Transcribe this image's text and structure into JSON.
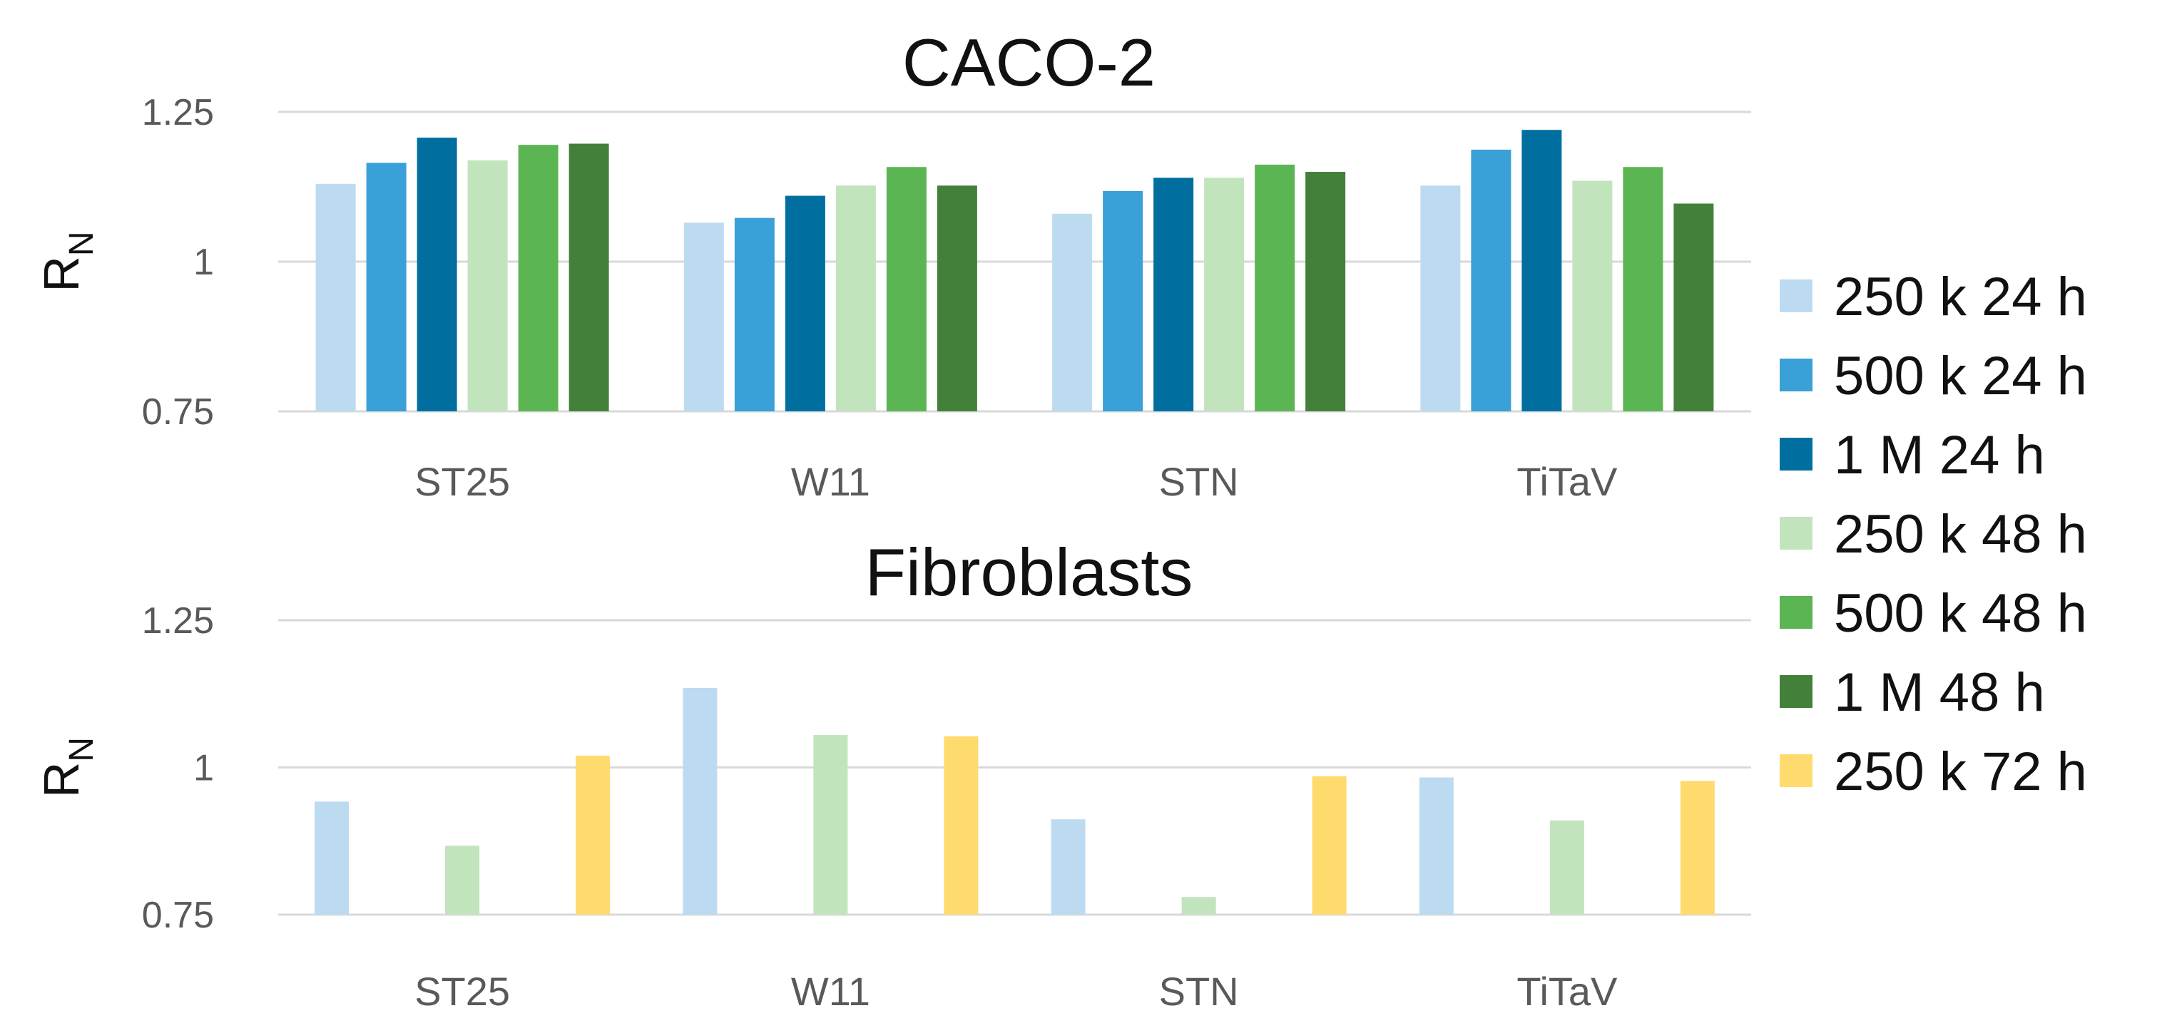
{
  "chart_data": [
    {
      "type": "bar",
      "title": "CACO-2",
      "ylabel": "R",
      "ylabel_subscript": "N",
      "xlabel": "",
      "ylim": [
        0.75,
        1.25
      ],
      "yticks": [
        "0.75",
        "1",
        "1.25"
      ],
      "grid": true,
      "categories": [
        "ST25",
        "W11",
        "STN",
        "TiTaV"
      ],
      "series": [
        {
          "name": "250 k 24 h",
          "color": "#bddbf0",
          "values": [
            1.13,
            1.065,
            1.08,
            1.127
          ]
        },
        {
          "name": "500 k 24 h",
          "color": "#3aa0d8",
          "values": [
            1.165,
            1.073,
            1.118,
            1.187
          ]
        },
        {
          "name": "1 M 24 h",
          "color": "#006fa0",
          "values": [
            1.207,
            1.11,
            1.14,
            1.22
          ]
        },
        {
          "name": "250 k 48 h",
          "color": "#c1e4bd",
          "values": [
            1.169,
            1.127,
            1.14,
            1.135
          ]
        },
        {
          "name": "500 k 48 h",
          "color": "#5bb553",
          "values": [
            1.195,
            1.158,
            1.162,
            1.158
          ]
        },
        {
          "name": "1 M 48 h",
          "color": "#43813a",
          "values": [
            1.197,
            1.127,
            1.15,
            1.097
          ]
        }
      ]
    },
    {
      "type": "bar",
      "title": "Fibroblasts",
      "ylabel": "R",
      "ylabel_subscript": "N",
      "xlabel": "",
      "ylim": [
        0.75,
        1.25
      ],
      "yticks": [
        "0.75",
        "1",
        "1.25"
      ],
      "grid": true,
      "categories": [
        "ST25",
        "W11",
        "STN",
        "TiTaV"
      ],
      "series": [
        {
          "name": "250 k 24 h",
          "color": "#bddbf0",
          "values": [
            0.942,
            1.135,
            0.912,
            0.983
          ]
        },
        {
          "name": "250 k 48 h",
          "color": "#c1e4bd",
          "values": [
            0.867,
            1.055,
            0.78,
            0.91
          ]
        },
        {
          "name": "250 k 72 h",
          "color": "#ffdb6e",
          "values": [
            1.02,
            1.053,
            0.985,
            0.977
          ]
        }
      ]
    }
  ],
  "legend": {
    "position": "right",
    "entries": [
      {
        "label": "250 k 24 h",
        "color": "#bddbf0"
      },
      {
        "label": "500 k 24 h",
        "color": "#3aa0d8"
      },
      {
        "label": "1 M 24 h",
        "color": "#006fa0"
      },
      {
        "label": "250 k 48 h",
        "color": "#c1e4bd"
      },
      {
        "label": "500 k 48 h",
        "color": "#5bb553"
      },
      {
        "label": "1 M 48 h",
        "color": "#43813a"
      },
      {
        "label": "250 k 72 h",
        "color": "#ffdb6e"
      }
    ]
  }
}
